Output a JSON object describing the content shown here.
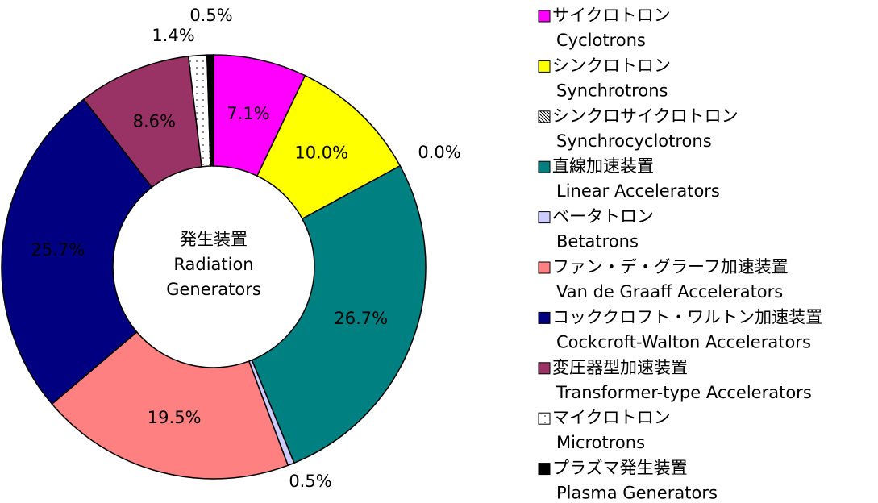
{
  "chart_data": {
    "type": "donut",
    "center_label": [
      "発生装置",
      "Radiation",
      "Generators"
    ],
    "categories": [
      "サイクロトロン",
      "シンクロトロン",
      "シンクロサイクロトロン",
      "直線加速装置",
      "ベータトロン",
      "ファン・デ・グラーフ加速装置",
      "コッククロフト・ワルトン加速装置",
      "変圧器型加速装置",
      "マイクロトロン",
      "プラズマ発生装置"
    ],
    "categories_en": [
      "Cyclotrons",
      "Synchrotrons",
      "Synchrocyclotrons",
      "Linear Accelerators",
      "Betatrons",
      "Van de Graaff Accelerators",
      "Cockcroft-Walton Accelerators",
      "Transformer-type Accelerators",
      "Microtrons",
      "Plasma Generators"
    ],
    "values": [
      7.1,
      10.0,
      0.0,
      26.7,
      0.5,
      19.5,
      25.7,
      8.6,
      1.4,
      0.5
    ],
    "value_labels": [
      "7.1%",
      "10.0%",
      "0.0%",
      "26.7%",
      "0.5%",
      "19.5%",
      "25.7%",
      "8.6%",
      "1.4%",
      "0.5%"
    ],
    "colors": [
      "#ff00ff",
      "#ffff00",
      "#ffffff",
      "#008080",
      "#ccccff",
      "#ff8080",
      "#000080",
      "#993366",
      "#ffffff",
      "#000000"
    ],
    "patterns": [
      null,
      null,
      "hatch",
      null,
      null,
      null,
      null,
      null,
      "dots",
      null
    ]
  }
}
